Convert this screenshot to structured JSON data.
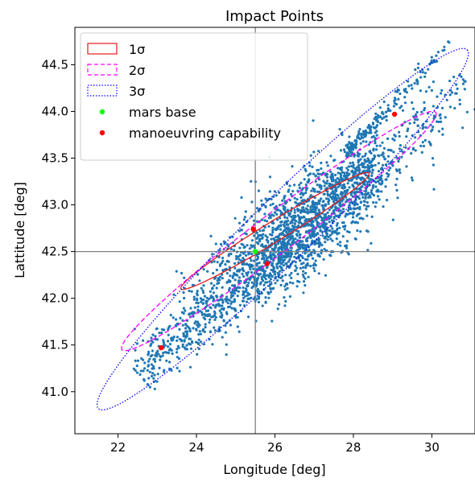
{
  "chart_data": {
    "type": "scatter",
    "title": "Impact Points",
    "xlabel": "Longitude [deg]",
    "ylabel": "Lattitude [deg]",
    "xlim": [
      20.9,
      31.1
    ],
    "ylim": [
      40.55,
      44.9
    ],
    "xticks": [
      22,
      24,
      26,
      28,
      30
    ],
    "xtick_labels": [
      "22",
      "24",
      "26",
      "28",
      "30"
    ],
    "yticks": [
      41.0,
      41.5,
      42.0,
      42.5,
      43.0,
      43.5,
      44.0,
      44.5
    ],
    "ytick_labels": [
      "41.0",
      "41.5",
      "42.0",
      "42.5",
      "43.0",
      "43.5",
      "44.0",
      "44.5"
    ],
    "grid": false,
    "legend_position": "top-left",
    "reference_lines": {
      "x": 25.5,
      "y": 42.5,
      "color": "#808080"
    },
    "scatter_color": "#1f77b4",
    "scatter_band": {
      "start": [
        22.5,
        41.2
      ],
      "end": [
        30.9,
        44.3
      ],
      "point_count": 2600,
      "spread_across": 0.1,
      "spread_along": 1.0,
      "upper_arm_tip": [
        30.4,
        44.7
      ]
    },
    "ellipses": [
      {
        "label": "1σ",
        "center": [
          26.0,
          42.72
        ],
        "semi_major_x": 2.4,
        "semi_major_y": 0.62,
        "width_ratio": 0.09,
        "color": "#e41a1c",
        "style": "solid"
      },
      {
        "label": "2σ",
        "center": [
          26.1,
          42.72
        ],
        "semi_major_x": 4.0,
        "semi_major_y": 1.27,
        "width_ratio": 0.1,
        "color": "#ff00ff",
        "style": "dashed"
      },
      {
        "label": "3σ",
        "center": [
          26.2,
          42.74
        ],
        "semi_major_x": 4.7,
        "semi_major_y": 1.92,
        "width_ratio": 0.12,
        "color": "#0000ff",
        "style": "dotted"
      }
    ],
    "series": [
      {
        "name": "mars base",
        "color": "#00ff00",
        "points": [
          [
            25.5,
            42.5
          ]
        ]
      },
      {
        "name": "manoeuvring capability",
        "color": "#ff0000",
        "points": [
          [
            23.1,
            41.47
          ],
          [
            25.45,
            42.74
          ],
          [
            25.8,
            42.37
          ],
          [
            29.05,
            43.97
          ]
        ]
      }
    ],
    "legend": [
      {
        "label": "1σ",
        "kind": "rect",
        "color": "#e41a1c",
        "style": "solid"
      },
      {
        "label": "2σ",
        "kind": "rect",
        "color": "#ff00ff",
        "style": "dashed"
      },
      {
        "label": "3σ",
        "kind": "rect",
        "color": "#0000ff",
        "style": "dotted"
      },
      {
        "label": "mars base",
        "kind": "dot",
        "color": "#00ff00"
      },
      {
        "label": "manoeuvring capability",
        "kind": "dot",
        "color": "#ff0000"
      }
    ]
  }
}
